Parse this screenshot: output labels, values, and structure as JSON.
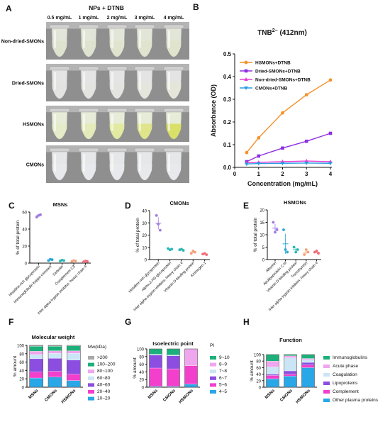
{
  "panels": {
    "A": {
      "letter": "A",
      "title": "NPs + DTNB",
      "concentrations": [
        "0.5 mg/mL",
        "1 mg/mL",
        "2 mg/mL",
        "3 mg/mL",
        "4 mg/mL"
      ],
      "rows": [
        {
          "label": "Non-dried-SMONs",
          "tube_color": "#e2e6d8",
          "liquid": [
            "#dde3cf",
            "#dde3cf",
            "#dfe4cf",
            "#dfe4cd",
            "#e0e4cc"
          ]
        },
        {
          "label": "Dried-SMONs",
          "tube_color": "#e4e4e4",
          "liquid": [
            "#e3e4e0",
            "#e3e4df",
            "#e3e4de",
            "#e4e5dc",
            "#e5e6d8"
          ]
        },
        {
          "label": "HSMONs",
          "tube_color": "#e7ecd8",
          "liquid": [
            "#e6ecc8",
            "#e4eab8",
            "#e2e99e",
            "#dfe486",
            "#d8df62"
          ]
        },
        {
          "label": "CMONs",
          "tube_color": "#e6e7e9",
          "liquid": [
            "#e8e9ec",
            "#e8e9ec",
            "#e8e9ec",
            "#e8e9ec",
            "#e8e9ec"
          ]
        }
      ]
    },
    "B": {
      "letter": "B"
    },
    "C": {
      "letter": "C"
    },
    "D": {
      "letter": "D"
    },
    "E": {
      "letter": "E"
    },
    "F": {
      "letter": "F"
    },
    "G": {
      "letter": "G"
    },
    "H": {
      "letter": "H"
    }
  },
  "chart_data": [
    {
      "id": "B",
      "type": "line",
      "title_base": "TNB",
      "title_sup": "2−",
      "title_rest": " (412nm)",
      "xlabel": "Concentration (mg/mL)",
      "ylabel": "Absorbance (OD)",
      "xlim": [
        0,
        4
      ],
      "ylim": [
        0,
        0.5
      ],
      "xticks": [
        "0",
        "1",
        "2",
        "3",
        "4"
      ],
      "yticks": [
        "0.0",
        "0.1",
        "0.2",
        "0.3",
        "0.4",
        "0.5"
      ],
      "x": [
        0.5,
        1,
        2,
        3,
        4
      ],
      "legend_position": "top-left",
      "series": [
        {
          "name": "HSMONs+DTNB",
          "color": "#f4912a",
          "marker": "circle",
          "values": [
            0.065,
            0.13,
            0.24,
            0.32,
            0.385
          ]
        },
        {
          "name": "Dried-SMONs+DTNB",
          "color": "#8f2fe0",
          "marker": "square",
          "values": [
            0.025,
            0.05,
            0.085,
            0.115,
            0.15
          ]
        },
        {
          "name": "Non-dried-SMONs+DTNB",
          "color": "#e840d6",
          "marker": "triangle",
          "values": [
            0.02,
            0.022,
            0.025,
            0.028,
            0.025
          ]
        },
        {
          "name": "CMONs+DTNB",
          "color": "#2a9ce0",
          "marker": "triangle-down",
          "values": [
            0.015,
            0.017,
            0.018,
            0.019,
            0.018
          ]
        }
      ]
    },
    {
      "id": "C",
      "type": "scatter",
      "title": "MSNs",
      "ylabel": "% of total protein",
      "ylim": [
        0,
        60
      ],
      "yticks": [
        "0",
        "20",
        "40",
        "60"
      ],
      "categories": [
        "Histidine-rich glycoprotein",
        "Immunoglobulin kappa constant",
        "Gelsolin",
        "Complement C3",
        "Inter alpha-trypsin inhibitor, heavy chain 4"
      ],
      "colors": [
        "#a07be0",
        "#29a7d6",
        "#2ab9b4",
        "#f3a27a",
        "#ef6f7a"
      ],
      "points": [
        [
          54,
          56,
          57
        ],
        [
          3,
          4.5,
          4
        ],
        [
          2.5,
          3.5,
          3
        ],
        [
          2,
          3,
          2.5
        ],
        [
          1.5,
          2.5,
          2
        ]
      ]
    },
    {
      "id": "D",
      "type": "scatter",
      "title": "CMONs",
      "ylabel": "% of total protein",
      "ylim": [
        0,
        40
      ],
      "yticks": [
        "0",
        "10",
        "20",
        "30",
        "40"
      ],
      "categories": [
        "Histidine-rich glycoprotein",
        "Alpha-2-HS-glycoprotein",
        "Inter alpha-trypsin inhibitor, heavy chain 4",
        "Vitamin D-binding protein",
        "Kininogen-1"
      ],
      "colors": [
        "#a07be0",
        "#2ab9b4",
        "#2ab9b4",
        "#f3a27a",
        "#ef6f7a"
      ],
      "points": [
        [
          36,
          29,
          24
        ],
        [
          9,
          8,
          8.5
        ],
        [
          8,
          8.5,
          7.5
        ],
        [
          5,
          7,
          6
        ],
        [
          4.5,
          5,
          4
        ]
      ]
    },
    {
      "id": "E",
      "type": "scatter",
      "title": "HSMONs",
      "ylabel": "% of total protein",
      "ylim": [
        0,
        20
      ],
      "yticks": [
        "0",
        "5",
        "10",
        "15",
        "20"
      ],
      "categories": [
        "Albumin",
        "Apolipoprotein C-III",
        "Vitamin D-binding protein",
        "Transthyretin",
        "Inter alpha-trypsin inhibitor, heavy chain 4"
      ],
      "colors": [
        "#a07be0",
        "#29a7d6",
        "#2ab9b4",
        "#f3a27a",
        "#ef6f7a"
      ],
      "points": [
        [
          15,
          11,
          12
        ],
        [
          12,
          4,
          3
        ],
        [
          5,
          3,
          4
        ],
        [
          2,
          4,
          3
        ],
        [
          3,
          3.5,
          2.5
        ]
      ]
    },
    {
      "id": "F",
      "type": "bar",
      "title": "Molecular weight",
      "ylabel": "% amount",
      "ylim": [
        0,
        100
      ],
      "yticks": [
        "0",
        "20",
        "40",
        "60",
        "80",
        "100"
      ],
      "categories": [
        "MSNs",
        "CMONs",
        "HSMONs"
      ],
      "legend_title": "Mw(kDa)",
      "series": [
        {
          "name": "10~20",
          "color": "#29a7e6",
          "values": [
            22,
            24,
            16
          ]
        },
        {
          "name": "20~40",
          "color": "#f23fcc",
          "values": [
            14,
            14,
            15
          ]
        },
        {
          "name": "40~60",
          "color": "#8b4ee0",
          "values": [
            32,
            31,
            34
          ]
        },
        {
          "name": "60~80",
          "color": "#c9e5f6",
          "values": [
            10,
            12,
            16
          ]
        },
        {
          "name": "80~100",
          "color": "#f0a6ee",
          "values": [
            8,
            6,
            6
          ]
        },
        {
          "name": "100~200",
          "color": "#1cb07a",
          "values": [
            12,
            11,
            12
          ]
        },
        {
          "name": ">200",
          "color": "#a9a9a9",
          "values": [
            2,
            2,
            1
          ]
        }
      ]
    },
    {
      "id": "G",
      "type": "bar",
      "title": "Isoelectric point",
      "ylabel": "% amount",
      "ylim": [
        0,
        100
      ],
      "yticks": [
        "0",
        "20",
        "40",
        "60",
        "80",
        "100"
      ],
      "categories": [
        "MSNs",
        "CMONs",
        "HSMONs"
      ],
      "legend_title": "PI",
      "series": [
        {
          "name": "4~5",
          "color": "#29a7e6",
          "values": [
            2,
            2,
            8
          ]
        },
        {
          "name": "5~6",
          "color": "#f23fcc",
          "values": [
            48,
            46,
            48
          ]
        },
        {
          "name": "6~7",
          "color": "#8b4ee0",
          "values": [
            34,
            34,
            0
          ]
        },
        {
          "name": "7~8",
          "color": "#c9e5f6",
          "values": [
            2,
            2,
            0
          ]
        },
        {
          "name": "8~9",
          "color": "#f0a6ee",
          "values": [
            0,
            0,
            44
          ]
        },
        {
          "name": "9~10",
          "color": "#1cb07a",
          "values": [
            14,
            16,
            0
          ]
        }
      ]
    },
    {
      "id": "H",
      "type": "bar",
      "title": "Function",
      "ylabel": "% amount",
      "ylim": [
        0,
        100
      ],
      "yticks": [
        "0",
        "20",
        "40",
        "60",
        "80",
        "100"
      ],
      "categories": [
        "MSNs",
        "CMONs",
        "HSMONs"
      ],
      "series": [
        {
          "name": "Other plasma proteins",
          "color": "#29a7e6",
          "values": [
            26,
            34,
            60
          ]
        },
        {
          "name": "Complement",
          "color": "#f23fcc",
          "values": [
            10,
            6,
            8
          ]
        },
        {
          "name": "Lipoproteins",
          "color": "#8b4ee0",
          "values": [
            4,
            10,
            8
          ]
        },
        {
          "name": "Coagulation",
          "color": "#c9e5f6",
          "values": [
            22,
            40,
            8
          ]
        },
        {
          "name": "Acute phase",
          "color": "#f0a6ee",
          "values": [
            18,
            6,
            4
          ]
        },
        {
          "name": "Immunoglobulins",
          "color": "#1cb07a",
          "values": [
            20,
            4,
            12
          ]
        }
      ]
    }
  ]
}
